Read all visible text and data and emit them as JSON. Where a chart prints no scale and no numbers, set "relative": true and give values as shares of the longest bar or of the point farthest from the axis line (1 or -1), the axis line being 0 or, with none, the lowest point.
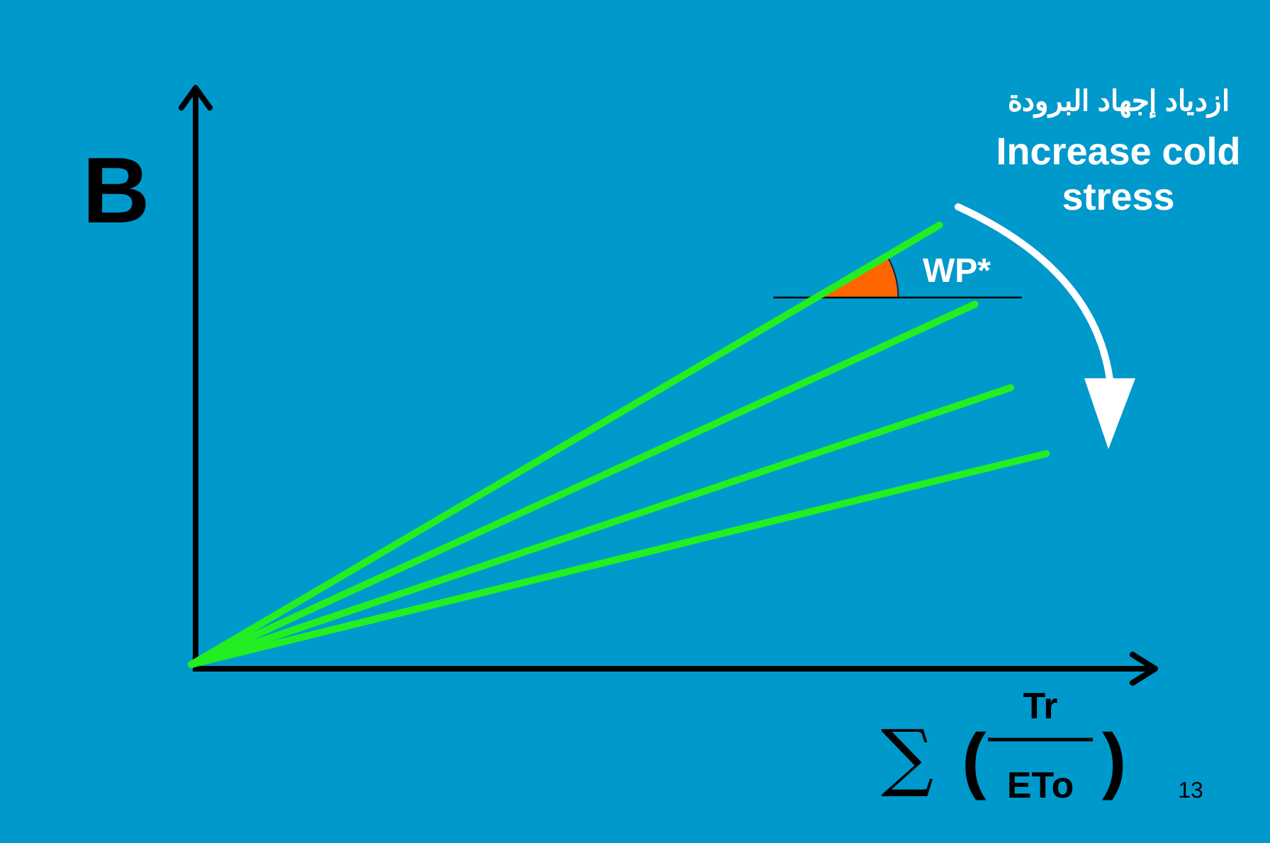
{
  "chart_data": {
    "type": "line",
    "relative": true,
    "ylabel": "B",
    "xlabel": "∑ ($^{Tr}$$_{ETo}$)",
    "marker": "none",
    "line_style": "solid",
    "categories": [
      null,
      null,
      null,
      null,
      null,
      null,
      null,
      null,
      null,
      null,
      null,
      null,
      null,
      null,
      null,
      null,
      null,
      null,
      null,
      null,
      null,
      null,
      null,
      null,
      null
    ],
    "series": [
      {
        "color": "#22ee22",
        "values": [
          0,
          null,
          null,
          null,
          null,
          null,
          null,
          null,
          null,
          null,
          null,
          null,
          null,
          null,
          null,
          null,
          null,
          null,
          null,
          null,
          null,
          1,
          null,
          null,
          null
        ]
      },
      {
        "color": "#22ee22",
        "values": [
          0,
          null,
          null,
          null,
          null,
          null,
          null,
          null,
          null,
          null,
          null,
          null,
          null,
          null,
          null,
          null,
          null,
          null,
          null,
          null,
          null,
          null,
          0.82,
          null,
          null
        ]
      },
      {
        "color": "#22ee22",
        "values": [
          0,
          null,
          null,
          null,
          null,
          null,
          null,
          null,
          null,
          null,
          null,
          null,
          null,
          null,
          null,
          null,
          null,
          null,
          null,
          null,
          null,
          null,
          null,
          0.63,
          null
        ]
      },
      {
        "color": "#22ee22",
        "values": [
          0,
          null,
          null,
          null,
          null,
          null,
          null,
          null,
          null,
          null,
          null,
          null,
          null,
          null,
          null,
          null,
          null,
          null,
          null,
          null,
          null,
          null,
          null,
          null,
          0.48
        ]
      }
    ],
    "annotations": [
      "ازدياد إجهاد البرودة",
      "Increase cold stress",
      "WP*",
      "13"
    ]
  }
}
